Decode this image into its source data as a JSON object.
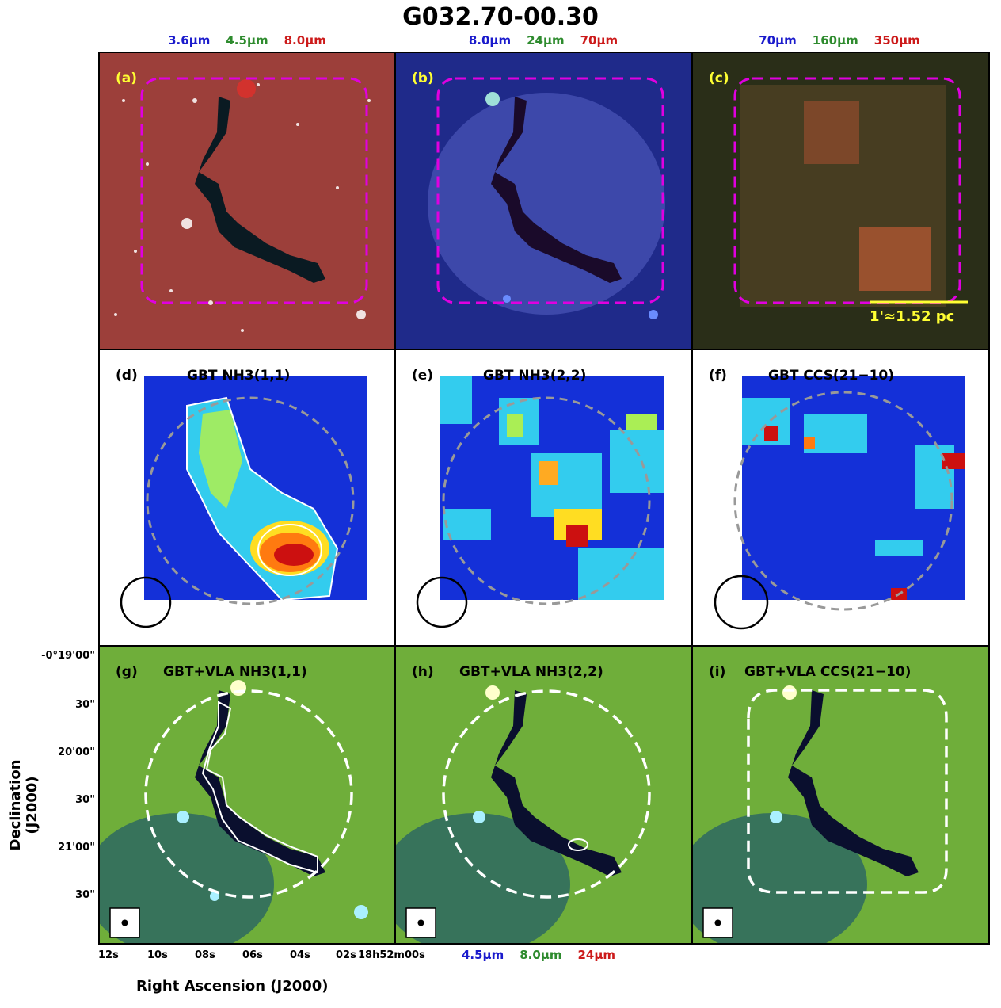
{
  "figure": {
    "title": "G032.70-00.30",
    "top_bands": [
      [
        {
          "text": "3.6μm",
          "color": "#1a1acc"
        },
        {
          "text": "4.5μm",
          "color": "#2e8b2e"
        },
        {
          "text": "8.0μm",
          "color": "#cc1a1a"
        }
      ],
      [
        {
          "text": "8.0μm",
          "color": "#1a1acc"
        },
        {
          "text": "24μm",
          "color": "#2e8b2e"
        },
        {
          "text": "70μm",
          "color": "#cc1a1a"
        }
      ],
      [
        {
          "text": "70μm",
          "color": "#1a1acc"
        },
        {
          "text": "160μm",
          "color": "#2e8b2e"
        },
        {
          "text": "350μm",
          "color": "#cc1a1a"
        }
      ]
    ],
    "bottom_bands": [
      {
        "text": "4.5μm",
        "color": "#1a1acc"
      },
      {
        "text": "8.0μm",
        "color": "#2e8b2e"
      },
      {
        "text": "24μm",
        "color": "#cc1a1a"
      }
    ],
    "panel_labels": [
      "(a)",
      "(b)",
      "(c)",
      "(d)",
      "(e)",
      "(f)",
      "(g)",
      "(h)",
      "(i)"
    ],
    "molecule_labels": {
      "d": "GBT NH3(1,1)",
      "e": "GBT NH3(2,2)",
      "f": "GBT CCS(21−10)",
      "g": "GBT+VLA NH3(1,1)",
      "h": "GBT+VLA NH3(2,2)",
      "i": "GBT+VLA CCS(21−10)"
    },
    "scale_bar": "1'≈1.52 pc",
    "y_axis_label": "Declination (J2000)",
    "x_axis_label": "Right Ascension (J2000)",
    "dec_ticks": [
      "-0°19'00\"",
      "30\"",
      "20'00\"",
      "30\"",
      "21'00\"",
      "30\""
    ],
    "ra_ticks": [
      "12s",
      "10s",
      "08s",
      "06s",
      "04s",
      "02s",
      "18h52m00s"
    ],
    "colors": {
      "panel_a_bg": "#a8423a",
      "panel_b_bg": "#2b3aa8",
      "panel_c_bg": "#3d3a1c",
      "bottom_bg": "#6fae3a",
      "dark_cloud": "#0a0f2e",
      "magenta_box": "#e000e0",
      "yellow_label": "#ffff33",
      "grey_circle": "#999999"
    }
  }
}
